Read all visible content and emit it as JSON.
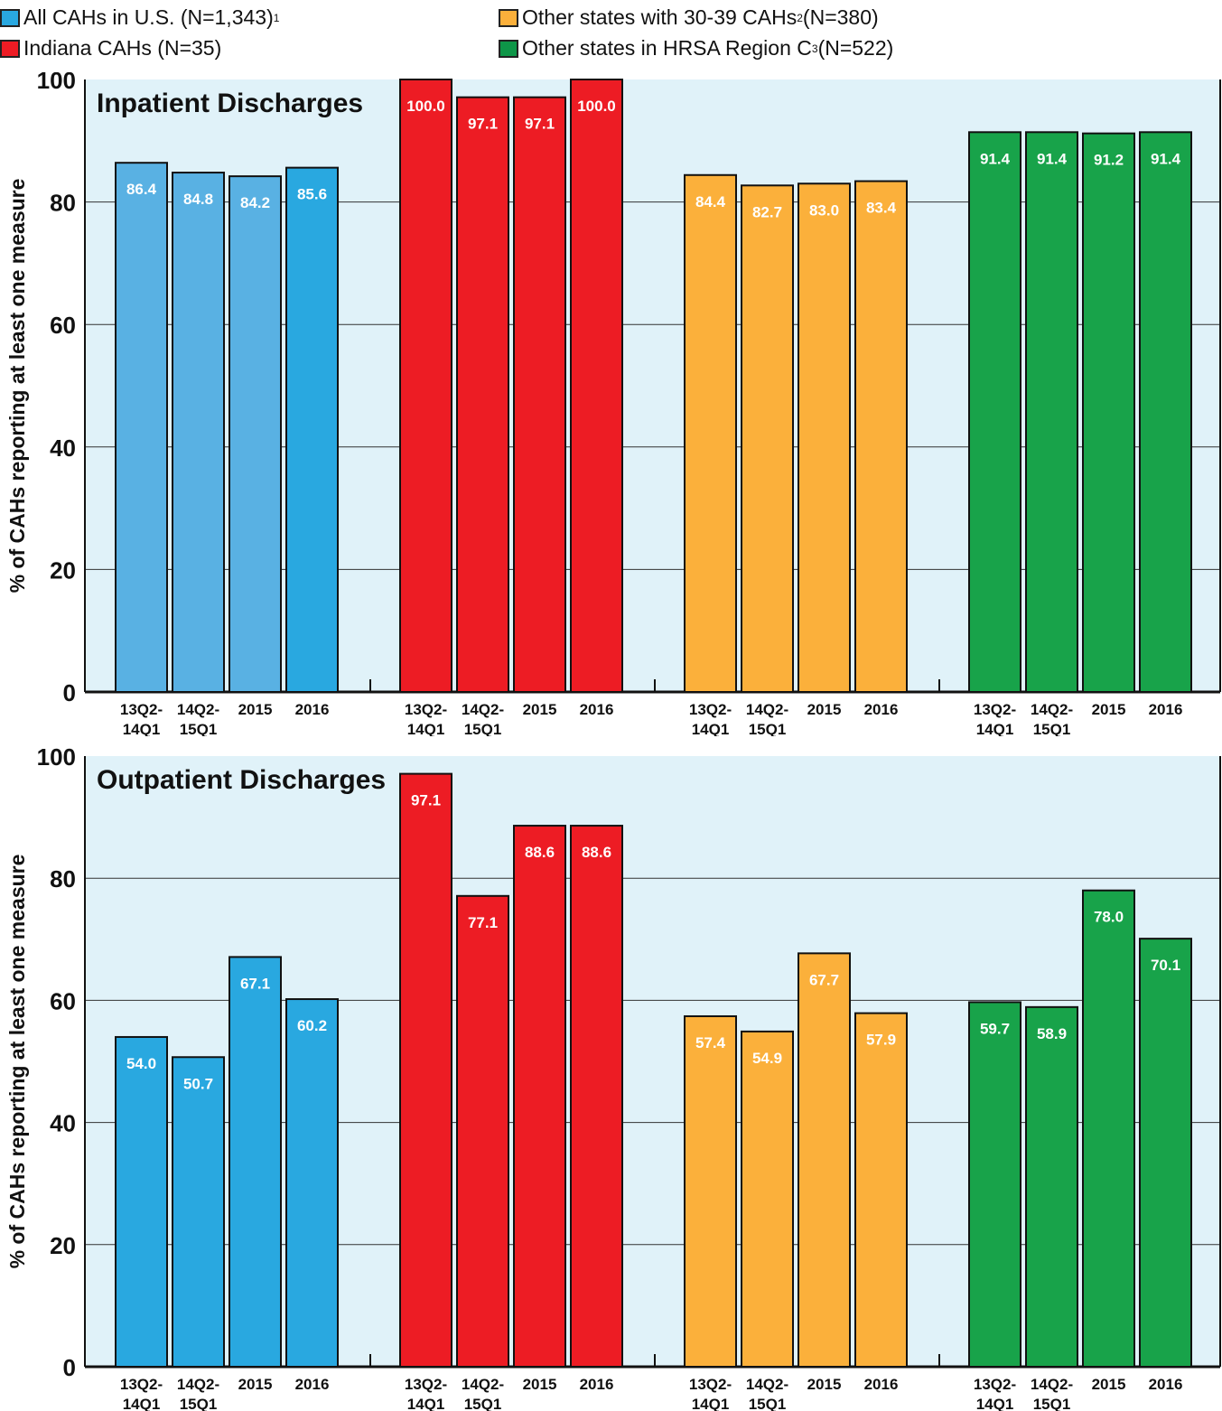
{
  "legend": {
    "items": [
      {
        "label": "All CAHs in U.S. (N=1,343)",
        "sup": "1",
        "color": "#29a8e0"
      },
      {
        "label": "Indiana CAHs (N=35)",
        "sup": "",
        "color": "#ed1c24"
      },
      {
        "label": "Other states with 30-39 CAHs",
        "sup": "2",
        "suffix": " (N=380)",
        "color": "#fbb03b"
      },
      {
        "label": "Other states in HRSA Region C",
        "sup": "3",
        "suffix": " (N=522)",
        "color": "#0e9648"
      }
    ]
  },
  "chart_data": [
    {
      "type": "bar",
      "title": "Inpatient Discharges",
      "ylabel": "% of CAHs reporting at least one measure",
      "ylim": [
        0,
        100
      ],
      "yticks": [
        0,
        20,
        40,
        60,
        80,
        100
      ],
      "grid": true,
      "categories": [
        "13Q2-\n14Q1",
        "14Q2-\n15Q1",
        "2015",
        "2016"
      ],
      "series": [
        {
          "name": "All CAHs in U.S. (N=1,343)",
          "values": [
            86.4,
            84.8,
            84.2,
            85.6
          ]
        },
        {
          "name": "Indiana CAHs (N=35)",
          "values": [
            100.0,
            97.1,
            97.1,
            100.0
          ]
        },
        {
          "name": "Other states with 30-39 CAHs (N=380)",
          "values": [
            84.4,
            82.7,
            83.0,
            83.4
          ]
        },
        {
          "name": "Other states in HRSA Region C (N=522)",
          "values": [
            91.4,
            91.4,
            91.2,
            91.4
          ]
        }
      ]
    },
    {
      "type": "bar",
      "title": "Outpatient Discharges",
      "ylabel": "% of CAHs reporting at least one measure",
      "ylim": [
        0,
        100
      ],
      "yticks": [
        0,
        20,
        40,
        60,
        80,
        100
      ],
      "grid": true,
      "categories": [
        "13Q2-\n14Q1",
        "14Q2-\n15Q1",
        "2015",
        "2016"
      ],
      "series": [
        {
          "name": "All CAHs in U.S. (N=1,343)",
          "values": [
            54.0,
            50.7,
            67.1,
            60.2
          ]
        },
        {
          "name": "Indiana CAHs (N=35)",
          "values": [
            97.1,
            77.1,
            88.6,
            88.6
          ]
        },
        {
          "name": "Other states with 30-39 CAHs (N=380)",
          "values": [
            57.4,
            54.9,
            67.7,
            57.9
          ]
        },
        {
          "name": "Other states in HRSA Region C (N=522)",
          "values": [
            59.7,
            58.9,
            78.0,
            70.1
          ]
        }
      ]
    }
  ],
  "series_colors": [
    [
      "#59b1e3",
      "#59b1e3",
      "#59b1e3",
      "#29a8e0"
    ],
    [
      "#ed1c24",
      "#ed1c24",
      "#ed1c24",
      "#ed1c24"
    ],
    [
      "#fbb03b",
      "#fbb03b",
      "#fbb03b",
      "#fbb03b"
    ],
    [
      "#18a34a",
      "#18a34a",
      "#18a34a",
      "#18a34a"
    ]
  ],
  "outpatient_series_colors": [
    [
      "#29a8e0",
      "#29a8e0",
      "#29a8e0",
      "#29a8e0"
    ],
    [
      "#ed1c24",
      "#ed1c24",
      "#ed1c24",
      "#ed1c24"
    ],
    [
      "#fbb03b",
      "#fbb03b",
      "#fbb03b",
      "#fbb03b"
    ],
    [
      "#18a34a",
      "#18a34a",
      "#18a34a",
      "#18a34a"
    ]
  ],
  "plot_background": "#e0f2f9"
}
